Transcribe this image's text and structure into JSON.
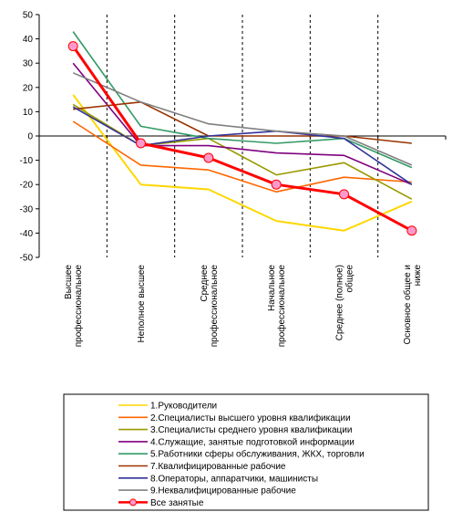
{
  "chart_data": {
    "type": "line",
    "ylim": [
      -50,
      50
    ],
    "y_ticks": [
      "50",
      "40",
      "30",
      "20",
      "10",
      "0",
      "-10",
      "-20",
      "-30",
      "-40",
      "-50"
    ],
    "grid": "vertical dashed between categories",
    "legend_position": "bottom",
    "categories": [
      [
        "Высшее",
        "профессиональное"
      ],
      [
        "Неполное высшее"
      ],
      [
        "Среднее",
        "профессиональное"
      ],
      [
        "Начальное",
        "профессиональное"
      ],
      [
        "Среднее (полное)",
        "общее"
      ],
      [
        "Основное общее и",
        "ниже"
      ]
    ],
    "series": [
      {
        "name": "1.Руководители",
        "color": "#ffd700",
        "width": 2,
        "values": [
          17,
          -20,
          -22,
          -35,
          -39,
          -27
        ]
      },
      {
        "name": "2.Специалисты высшего уровня квалификации",
        "color": "#ff6600",
        "width": 1.6,
        "values": [
          6,
          -12,
          -14,
          -23,
          -17,
          -19
        ]
      },
      {
        "name": "3.Специалисты среднего уровня квалификации",
        "color": "#999900",
        "width": 1.6,
        "values": [
          13,
          -4,
          -1,
          -16,
          -11,
          -26
        ]
      },
      {
        "name": "4.Служащие, занятые подготовкой информации",
        "color": "#800080",
        "width": 1.6,
        "values": [
          30,
          -4,
          -4,
          -7,
          -8,
          -20
        ]
      },
      {
        "name": "5.Работники сферы обслуживания, ЖКХ, торговли",
        "color": "#339966",
        "width": 1.6,
        "values": [
          43,
          4,
          -1,
          -3,
          -1,
          -13
        ]
      },
      {
        "name": "7.Квалифицированные рабочие",
        "color": "#993300",
        "width": 1.6,
        "values": [
          11,
          14,
          0,
          0,
          0,
          -3
        ]
      },
      {
        "name": "8.Операторы, аппаратчики, машинисты",
        "color": "#333399",
        "width": 1.6,
        "values": [
          12,
          -4,
          0,
          2,
          -1,
          -20
        ]
      },
      {
        "name": "9.Неквалифицированные рабочие",
        "color": "#808080",
        "width": 1.6,
        "values": [
          26,
          14,
          5,
          2,
          0,
          -12
        ]
      },
      {
        "name": "Все занятые",
        "color": "#ff0000",
        "width": 3,
        "marker": "#ff99cc",
        "values": [
          37,
          -3,
          -9,
          -20,
          -24,
          -39
        ]
      }
    ]
  }
}
